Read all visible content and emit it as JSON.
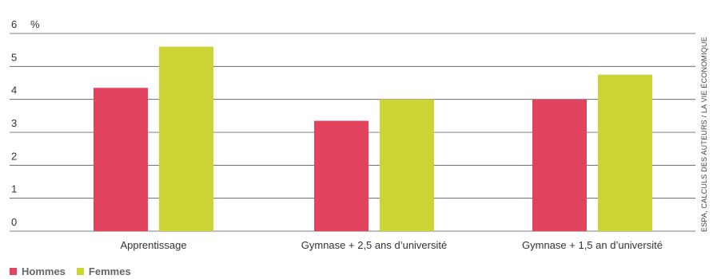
{
  "chart_data": {
    "type": "bar",
    "y_unit_label": "%",
    "ylim": [
      0,
      6
    ],
    "y_ticks": [
      "0",
      "1",
      "2",
      "3",
      "4",
      "5",
      "6"
    ],
    "categories": [
      "Apprentissage",
      "Gymnase + 2,5 ans d’université",
      "Gymnase + 1,5 an d’université"
    ],
    "series": [
      {
        "name": "Hommes",
        "color": "#e2435f",
        "values": [
          4.35,
          3.35,
          4.0
        ]
      },
      {
        "name": "Femmes",
        "color": "#cdd435",
        "values": [
          5.6,
          4.0,
          4.75
        ]
      }
    ],
    "grid": true,
    "legend_position": "bottom-left",
    "source": "ESPA, CALCULS DES AUTEURS / LA VIE ÉCONOMIQUE"
  }
}
